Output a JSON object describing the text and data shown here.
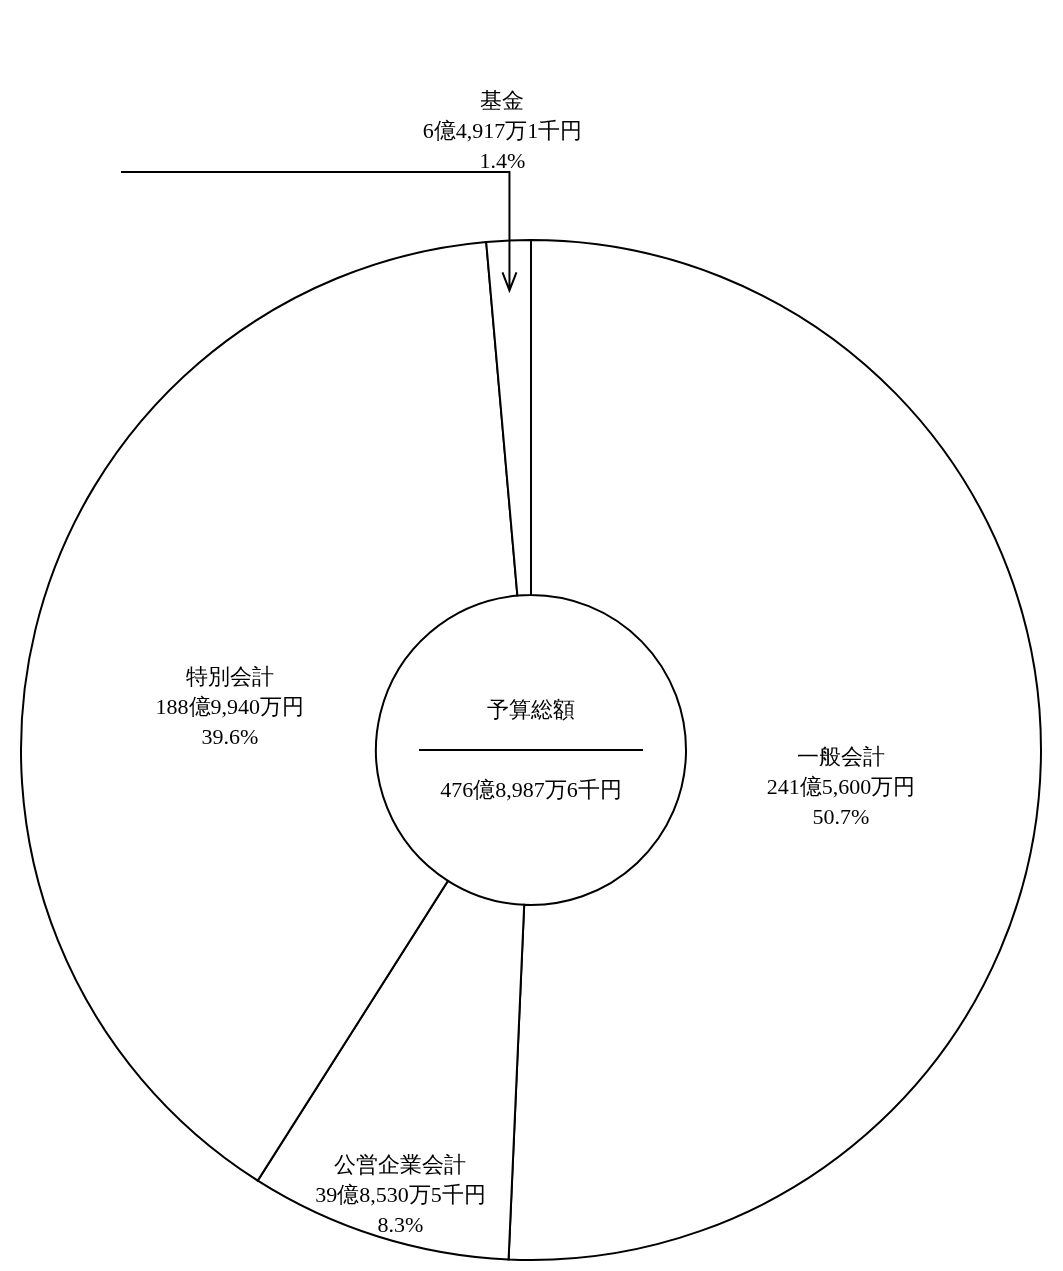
{
  "chart_data": {
    "type": "donut",
    "categories": [
      "一般会計",
      "公営企業会計",
      "特別会計",
      "基金"
    ],
    "values": [
      50.7,
      8.3,
      39.6,
      1.4
    ],
    "colors": [
      "#ffffff",
      "#ffffff",
      "#ffffff",
      "#ffffff"
    ],
    "value_labels": [
      "241億5,600万円\n50.7%",
      "39億8,530万5千円\n8.3%",
      "188億9,940万円\n39.6%",
      "6億4,917万1千円\n1.4%"
    ],
    "annotations": [
      "予算総額",
      "476億8,987万6千円"
    ]
  }
}
